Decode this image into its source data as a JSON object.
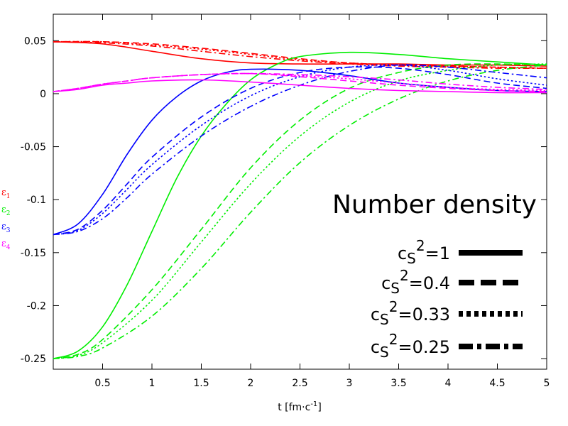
{
  "chart_data": {
    "type": "line",
    "title": "Number density",
    "xlabel": "t [fm·c⁻¹]",
    "xlabel_parts": {
      "base": "t [fm·c",
      "sup": "-1",
      "end": "]"
    },
    "ylabel": "",
    "xlim": [
      0,
      5
    ],
    "ylim": [
      -0.26,
      0.075
    ],
    "grid": false,
    "legend_placement": "right",
    "x_ticks": [
      0.5,
      1,
      1.5,
      2,
      2.5,
      3,
      3.5,
      4,
      4.5,
      5
    ],
    "x_tick_labels": [
      "0.5",
      "1",
      "1.5",
      "2",
      "2.5",
      "3",
      "3.5",
      "4",
      "4.5",
      "5"
    ],
    "y_ticks": [
      0.05,
      0,
      -0.05,
      -0.1,
      -0.15,
      -0.2,
      -0.25
    ],
    "y_tick_labels": [
      "0.05",
      "0",
      "-0.05",
      "-0.1",
      "-0.15",
      "-0.2",
      "-0.25"
    ],
    "components": [
      {
        "key": "e1",
        "label": "ε",
        "sub": "1",
        "color": "#ff0000"
      },
      {
        "key": "e2",
        "label": "ε",
        "sub": "2",
        "color": "#00ee00"
      },
      {
        "key": "e3",
        "label": "ε",
        "sub": "3",
        "color": "#0000ff"
      },
      {
        "key": "e4",
        "label": "ε",
        "sub": "4",
        "color": "#ff00ff"
      }
    ],
    "legend": [
      {
        "base": "c",
        "sub": "S",
        "sup": "2",
        "value": "=1",
        "style": "solid"
      },
      {
        "base": "c",
        "sub": "S",
        "sup": "2",
        "value": "=0.4",
        "style": "dashed"
      },
      {
        "base": "c",
        "sub": "S",
        "sup": "2",
        "value": "=0.33",
        "style": "dotted"
      },
      {
        "base": "c",
        "sub": "S",
        "sup": "2",
        "value": "=0.25",
        "style": "dashdot"
      }
    ],
    "series": [
      {
        "name": "ε1 cs²=1",
        "component": "e1",
        "style": "solid",
        "x": [
          0,
          0.5,
          1,
          1.5,
          2,
          2.5,
          3,
          3.5,
          4,
          4.5,
          5
        ],
        "y": [
          0.049,
          0.047,
          0.04,
          0.033,
          0.029,
          0.028,
          0.028,
          0.028,
          0.027,
          0.027,
          0.026
        ]
      },
      {
        "name": "ε1 cs²=0.4",
        "component": "e1",
        "style": "dashed",
        "x": [
          0,
          0.5,
          1,
          1.5,
          2,
          2.5,
          3,
          3.5,
          4,
          4.5,
          5
        ],
        "y": [
          0.049,
          0.049,
          0.047,
          0.043,
          0.038,
          0.033,
          0.029,
          0.027,
          0.026,
          0.025,
          0.024
        ]
      },
      {
        "name": "ε1 cs²=0.33",
        "component": "e1",
        "style": "dotted",
        "x": [
          0,
          0.5,
          1,
          1.5,
          2,
          2.5,
          3,
          3.5,
          4,
          4.5,
          5
        ],
        "y": [
          0.049,
          0.049,
          0.046,
          0.042,
          0.037,
          0.032,
          0.029,
          0.027,
          0.026,
          0.025,
          0.024
        ]
      },
      {
        "name": "ε1 cs²=0.25",
        "component": "e1",
        "style": "dashdot",
        "x": [
          0,
          0.5,
          1,
          1.5,
          2,
          2.5,
          3,
          3.5,
          4,
          4.5,
          5
        ],
        "y": [
          0.049,
          0.048,
          0.045,
          0.04,
          0.035,
          0.031,
          0.028,
          0.026,
          0.025,
          0.024,
          0.024
        ]
      },
      {
        "name": "ε2 cs²=1",
        "component": "e2",
        "style": "solid",
        "x": [
          0,
          0.25,
          0.5,
          0.75,
          1,
          1.25,
          1.5,
          1.75,
          2,
          2.25,
          2.5,
          3,
          3.5,
          4,
          4.5,
          5
        ],
        "y": [
          -0.25,
          -0.243,
          -0.22,
          -0.18,
          -0.13,
          -0.08,
          -0.04,
          -0.01,
          0.013,
          0.027,
          0.035,
          0.039,
          0.037,
          0.033,
          0.03,
          0.027
        ]
      },
      {
        "name": "ε2 cs²=0.4",
        "component": "e2",
        "style": "dashed",
        "x": [
          0,
          0.25,
          0.5,
          1,
          1.5,
          2,
          2.5,
          3,
          3.5,
          4,
          4.5,
          5
        ],
        "y": [
          -0.25,
          -0.246,
          -0.232,
          -0.185,
          -0.128,
          -0.07,
          -0.025,
          0.005,
          0.02,
          0.027,
          0.028,
          0.027
        ]
      },
      {
        "name": "ε2 cs²=0.33",
        "component": "e2",
        "style": "dotted",
        "x": [
          0,
          0.25,
          0.5,
          1,
          1.5,
          2,
          2.5,
          3,
          3.5,
          4,
          4.5,
          5
        ],
        "y": [
          -0.25,
          -0.247,
          -0.235,
          -0.195,
          -0.14,
          -0.085,
          -0.04,
          -0.008,
          0.012,
          0.022,
          0.027,
          0.028
        ]
      },
      {
        "name": "ε2 cs²=0.25",
        "component": "e2",
        "style": "dashdot",
        "x": [
          0,
          0.25,
          0.5,
          1,
          1.5,
          2,
          2.5,
          3,
          3.5,
          4,
          4.5,
          5
        ],
        "y": [
          -0.25,
          -0.248,
          -0.24,
          -0.21,
          -0.165,
          -0.112,
          -0.065,
          -0.03,
          -0.005,
          0.012,
          0.022,
          0.027
        ]
      },
      {
        "name": "ε3 cs²=1",
        "component": "e3",
        "style": "solid",
        "x": [
          0,
          0.25,
          0.5,
          0.75,
          1,
          1.25,
          1.5,
          1.75,
          2,
          2.5,
          3,
          3.5,
          4,
          4.5,
          5
        ],
        "y": [
          -0.133,
          -0.123,
          -0.095,
          -0.057,
          -0.025,
          -0.003,
          0.012,
          0.02,
          0.023,
          0.022,
          0.017,
          0.01,
          0.006,
          0.003,
          0.002
        ]
      },
      {
        "name": "ε3 cs²=0.4",
        "component": "e3",
        "style": "dashed",
        "x": [
          0,
          0.25,
          0.5,
          0.75,
          1,
          1.5,
          2,
          2.5,
          3,
          3.5,
          4,
          4.5,
          5
        ],
        "y": [
          -0.133,
          -0.128,
          -0.11,
          -0.085,
          -0.06,
          -0.022,
          0.005,
          0.02,
          0.025,
          0.024,
          0.018,
          0.01,
          0.005
        ]
      },
      {
        "name": "ε3 cs²=0.33",
        "component": "e3",
        "style": "dotted",
        "x": [
          0,
          0.25,
          0.5,
          0.75,
          1,
          1.5,
          2,
          2.5,
          3,
          3.5,
          4,
          4.5,
          5
        ],
        "y": [
          -0.133,
          -0.129,
          -0.113,
          -0.09,
          -0.067,
          -0.03,
          -0.002,
          0.016,
          0.025,
          0.027,
          0.022,
          0.014,
          0.008
        ]
      },
      {
        "name": "ε3 cs²=0.25",
        "component": "e3",
        "style": "dashdot",
        "x": [
          0,
          0.25,
          0.5,
          0.75,
          1,
          1.5,
          2,
          2.5,
          3,
          3.5,
          4,
          4.5,
          5
        ],
        "y": [
          -0.133,
          -0.13,
          -0.118,
          -0.098,
          -0.076,
          -0.04,
          -0.012,
          0.008,
          0.021,
          0.027,
          0.025,
          0.02,
          0.015
        ]
      },
      {
        "name": "ε4 cs²=1",
        "component": "e4",
        "style": "solid",
        "x": [
          0,
          0.25,
          0.5,
          0.75,
          1,
          1.5,
          2,
          2.5,
          3,
          3.5,
          4,
          4.5,
          5
        ],
        "y": [
          0.002,
          0.004,
          0.008,
          0.01,
          0.012,
          0.013,
          0.011,
          0.008,
          0.005,
          0.003,
          0.002,
          0.001,
          0.001
        ]
      },
      {
        "name": "ε4 cs²=0.4",
        "component": "e4",
        "style": "dashed",
        "x": [
          0,
          0.25,
          0.5,
          0.75,
          1,
          1.5,
          2,
          2.5,
          3,
          3.5,
          4,
          4.5,
          5
        ],
        "y": [
          0.002,
          0.005,
          0.009,
          0.012,
          0.015,
          0.018,
          0.019,
          0.016,
          0.012,
          0.008,
          0.005,
          0.003,
          0.002
        ]
      },
      {
        "name": "ε4 cs²=0.33",
        "component": "e4",
        "style": "dotted",
        "x": [
          0,
          0.25,
          0.5,
          0.75,
          1,
          1.5,
          2,
          2.5,
          3,
          3.5,
          4,
          4.5,
          5
        ],
        "y": [
          0.002,
          0.005,
          0.009,
          0.012,
          0.015,
          0.018,
          0.019,
          0.017,
          0.014,
          0.01,
          0.006,
          0.004,
          0.003
        ]
      },
      {
        "name": "ε4 cs²=0.25",
        "component": "e4",
        "style": "dashdot",
        "x": [
          0,
          0.25,
          0.5,
          0.75,
          1,
          1.5,
          2,
          2.5,
          3,
          3.5,
          4,
          4.5,
          5
        ],
        "y": [
          0.002,
          0.005,
          0.009,
          0.012,
          0.015,
          0.018,
          0.019,
          0.018,
          0.016,
          0.013,
          0.009,
          0.006,
          0.004
        ]
      }
    ]
  }
}
